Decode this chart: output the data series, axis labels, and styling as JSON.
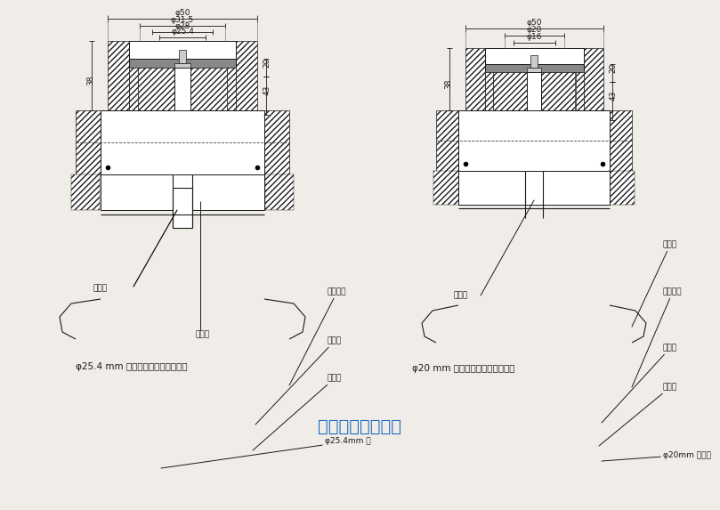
{
  "title": "泄漏密封试验原理",
  "title_color": "#1a6abf",
  "bg_color": "#f0ede8",
  "left_caption": "φ25.4 mm 气雾阀泄漏试验仪检测头",
  "right_caption": "φ20 mm 气雾阀泄漏试验仪检测头",
  "left_labels": {
    "dim50": "φ50",
    "dim315": "φ31.5",
    "dim28": "φ28",
    "dim254": "φ25.4",
    "label_gas": "φ25.4mm 气",
    "label_shangpan": "上底盘",
    "label_fazuo": "阀支座",
    "label_tongqi": "通气底座",
    "label_jieqi": "接气管",
    "label_mifeng": "密封圈",
    "dim_38": "38",
    "dim_20": "20",
    "dim_43": "43"
  },
  "right_labels": {
    "dim50": "φ50",
    "dim20": "φ20",
    "dim16": "φ16",
    "label_gas": "φ20mm 气雾阀",
    "label_shangpan": "上底盘",
    "label_fazuo": "阀支座",
    "label_tongqi": "通气底座",
    "label_jieqi": "接气管",
    "label_mifeng": "密封圈",
    "dim_38": "38",
    "dim_20": "20",
    "dim_43": "43"
  }
}
